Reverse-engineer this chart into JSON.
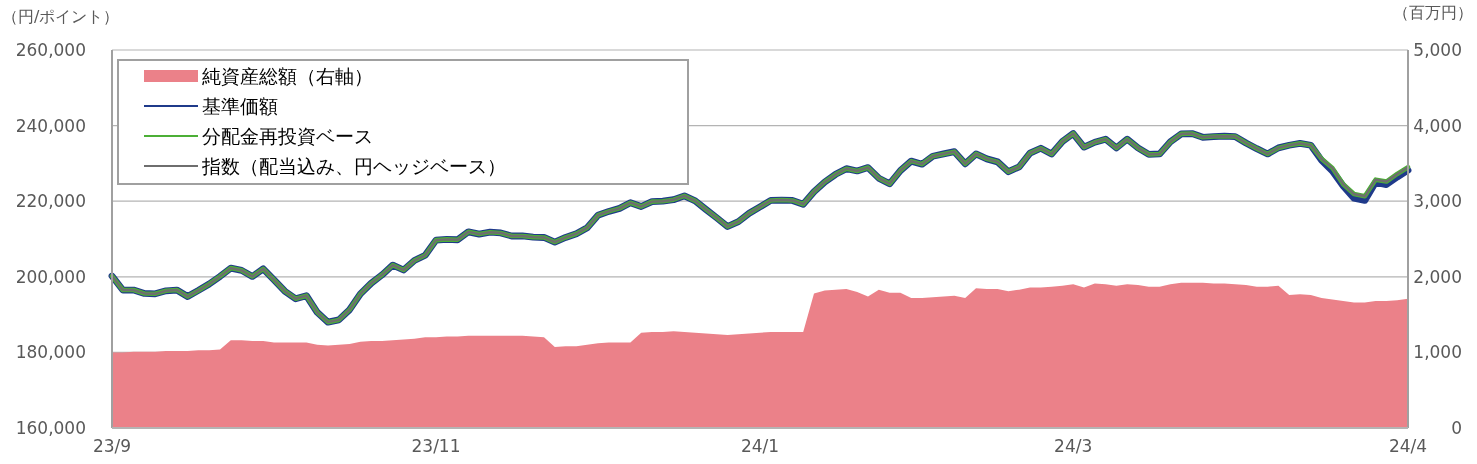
{
  "chart_data": {
    "type": "line",
    "ylabel": "（円/ポイント）",
    "y2label": "（百万円）",
    "categories": [
      "23/9",
      null,
      null,
      null,
      null,
      null,
      null,
      null,
      null,
      null,
      null,
      null,
      null,
      null,
      null,
      null,
      null,
      null,
      null,
      null,
      null,
      null,
      null,
      null,
      null,
      null,
      null,
      null,
      null,
      null,
      "23/11",
      null,
      null,
      null,
      null,
      null,
      null,
      null,
      null,
      null,
      null,
      null,
      null,
      null,
      null,
      null,
      null,
      null,
      null,
      null,
      null,
      null,
      null,
      null,
      null,
      null,
      null,
      null,
      null,
      null,
      "24/1",
      null,
      null,
      null,
      null,
      null,
      null,
      null,
      null,
      null,
      null,
      null,
      null,
      null,
      null,
      null,
      null,
      null,
      null,
      null,
      null,
      null,
      null,
      null,
      null,
      null,
      null,
      null,
      null,
      "24/3",
      null,
      null,
      null,
      null,
      null,
      null,
      null,
      null,
      null,
      null,
      null,
      null,
      null,
      null,
      null,
      null,
      null,
      null,
      null,
      null,
      null,
      null,
      null,
      null,
      null,
      null,
      null,
      null,
      null,
      null,
      "24/4"
    ],
    "ylim": [
      160000,
      260000
    ],
    "yticks": [
      {
        "value": 160000,
        "label": "160,000"
      },
      {
        "value": 180000,
        "label": "180,000"
      },
      {
        "value": 200000,
        "label": "200,000"
      },
      {
        "value": 220000,
        "label": "220,000"
      },
      {
        "value": 240000,
        "label": "240,000"
      },
      {
        "value": 260000,
        "label": "260,000"
      }
    ],
    "y2lim": [
      0,
      5000
    ],
    "y2ticks": [
      0,
      {
        "value": 1000,
        "label": "1,000"
      },
      {
        "value": 2000,
        "label": "2,000"
      },
      {
        "value": 3000,
        "label": "3,000"
      },
      {
        "value": 4000,
        "label": "4,000"
      },
      {
        "value": 5000,
        "label": "5,000"
      }
    ],
    "grid": "y",
    "legend": "top left",
    "marker": "none",
    "line_style": "solid",
    "series": [
      {
        "name": "純資産総額（右軸）",
        "type": "area",
        "axis": "y2",
        "color": "#eb8189",
        "values": [
          1000,
          1000,
          1010,
          1010,
          1010,
          1020,
          1020,
          1020,
          1030,
          1030,
          1040,
          1160,
          1160,
          1150,
          1150,
          1130,
          1130,
          1130,
          1130,
          1100,
          1090,
          1100,
          1110,
          1140,
          1150,
          1150,
          1160,
          1170,
          1180,
          1200,
          1200,
          1210,
          1210,
          1220,
          1220,
          1220,
          1220,
          1220,
          1220,
          1210,
          1200,
          1070,
          1080,
          1080,
          1100,
          1120,
          1130,
          1130,
          1130,
          1260,
          1270,
          1270,
          1280,
          1270,
          1260,
          1250,
          1240,
          1230,
          1240,
          1250,
          1260,
          1270,
          1270,
          1270,
          1270,
          1780,
          1820,
          1830,
          1840,
          1800,
          1740,
          1830,
          1790,
          1790,
          1720,
          1720,
          1730,
          1740,
          1750,
          1720,
          1850,
          1840,
          1840,
          1810,
          1830,
          1860,
          1860,
          1870,
          1880,
          1900,
          1860,
          1910,
          1900,
          1880,
          1900,
          1890,
          1870,
          1870,
          1900,
          1920,
          1920,
          1920,
          1910,
          1910,
          1900,
          1890,
          1870,
          1870,
          1880,
          1760,
          1770,
          1760,
          1720,
          1700,
          1680,
          1660,
          1660,
          1680,
          1680,
          1690,
          1710
        ]
      },
      {
        "name": "基準価額",
        "color": "#1f3a8a",
        "values": [
          200200,
          196500,
          196500,
          195600,
          195500,
          196300,
          196500,
          194800,
          196400,
          198100,
          200100,
          202300,
          201700,
          200100,
          202100,
          199200,
          196200,
          194200,
          195000,
          190600,
          188000,
          188600,
          191300,
          195500,
          198300,
          200500,
          203100,
          201800,
          204300,
          205700,
          209700,
          209900,
          209800,
          211900,
          211300,
          211800,
          211600,
          210800,
          210800,
          210500,
          210400,
          209200,
          210400,
          211400,
          213000,
          216300,
          217300,
          218100,
          219600,
          218600,
          219900,
          220000,
          220400,
          221400,
          220100,
          217800,
          215600,
          213300,
          214600,
          216800,
          218500,
          220200,
          220300,
          220200,
          219200,
          222500,
          225100,
          227100,
          228600,
          228000,
          228900,
          226100,
          224600,
          228100,
          230600,
          229800,
          231900,
          232500,
          233100,
          229900,
          232500,
          231200,
          230400,
          227800,
          229100,
          232700,
          234000,
          232500,
          235800,
          237900,
          234300,
          235600,
          236400,
          234100,
          236400,
          234100,
          232400,
          232500,
          235700,
          237800,
          237900,
          236900,
          237100,
          237200,
          237100,
          235400,
          233900,
          232500,
          234100,
          234800,
          235300,
          234800,
          230800,
          228000,
          224000,
          220800,
          220200,
          225000,
          224400,
          226400,
          228200
        ]
      },
      {
        "name": "分配金再投資ベース",
        "color": "#4caf36",
        "values": [
          200200,
          196500,
          196500,
          195600,
          195500,
          196300,
          196500,
          194800,
          196400,
          198100,
          200100,
          202300,
          201700,
          200100,
          202100,
          199200,
          196200,
          194200,
          195000,
          190600,
          188000,
          188600,
          191300,
          195500,
          198300,
          200500,
          203100,
          201800,
          204300,
          205700,
          209700,
          209900,
          209800,
          211900,
          211300,
          211800,
          211600,
          210800,
          210800,
          210500,
          210400,
          209200,
          210400,
          211400,
          213000,
          216300,
          217300,
          218100,
          219600,
          218600,
          219900,
          220000,
          220400,
          221400,
          220100,
          217800,
          215600,
          213300,
          214600,
          216800,
          218500,
          220200,
          220300,
          220200,
          219200,
          222500,
          225100,
          227100,
          228600,
          228000,
          228900,
          226100,
          224600,
          228100,
          230600,
          229800,
          231900,
          232500,
          233100,
          229900,
          232500,
          231200,
          230400,
          227800,
          229100,
          232700,
          234000,
          232500,
          235800,
          237900,
          234300,
          235600,
          236400,
          234100,
          236400,
          234100,
          232400,
          232500,
          235700,
          237800,
          237900,
          236900,
          237100,
          237200,
          237100,
          235400,
          233900,
          232500,
          234100,
          234800,
          235300,
          234800,
          231200,
          228800,
          224500,
          221900,
          221300,
          225700,
          225200,
          227200,
          229000
        ]
      },
      {
        "name": "指数（配当込み、円ヘッジベース）",
        "color": "#6e6e6e",
        "values": [
          200200,
          196500,
          196500,
          195600,
          195500,
          196300,
          196500,
          194800,
          196400,
          198100,
          200100,
          202300,
          201700,
          200100,
          202100,
          199200,
          196200,
          194200,
          195000,
          190600,
          188000,
          188600,
          191300,
          195500,
          198300,
          200500,
          203100,
          201800,
          204300,
          205700,
          209700,
          209900,
          209800,
          211900,
          211300,
          211800,
          211600,
          210800,
          210800,
          210500,
          210400,
          209200,
          210400,
          211400,
          213000,
          216300,
          217300,
          218100,
          219600,
          218600,
          219900,
          220000,
          220400,
          221400,
          220100,
          217800,
          215600,
          213300,
          214600,
          216800,
          218500,
          220200,
          220300,
          220200,
          219200,
          222500,
          225100,
          227100,
          228600,
          228000,
          228900,
          226100,
          224600,
          228100,
          230600,
          229800,
          231900,
          232500,
          233100,
          229900,
          232500,
          231200,
          230400,
          227800,
          229100,
          232700,
          234000,
          232500,
          235800,
          237900,
          234300,
          235600,
          236400,
          234100,
          236400,
          234100,
          232400,
          232500,
          235700,
          237800,
          237900,
          236900,
          237100,
          237200,
          237100,
          235400,
          233900,
          232500,
          234100,
          234800,
          235300,
          234800,
          231200,
          228800,
          224500,
          221900,
          221300,
          225700,
          225200,
          227200,
          229000
        ]
      }
    ]
  }
}
